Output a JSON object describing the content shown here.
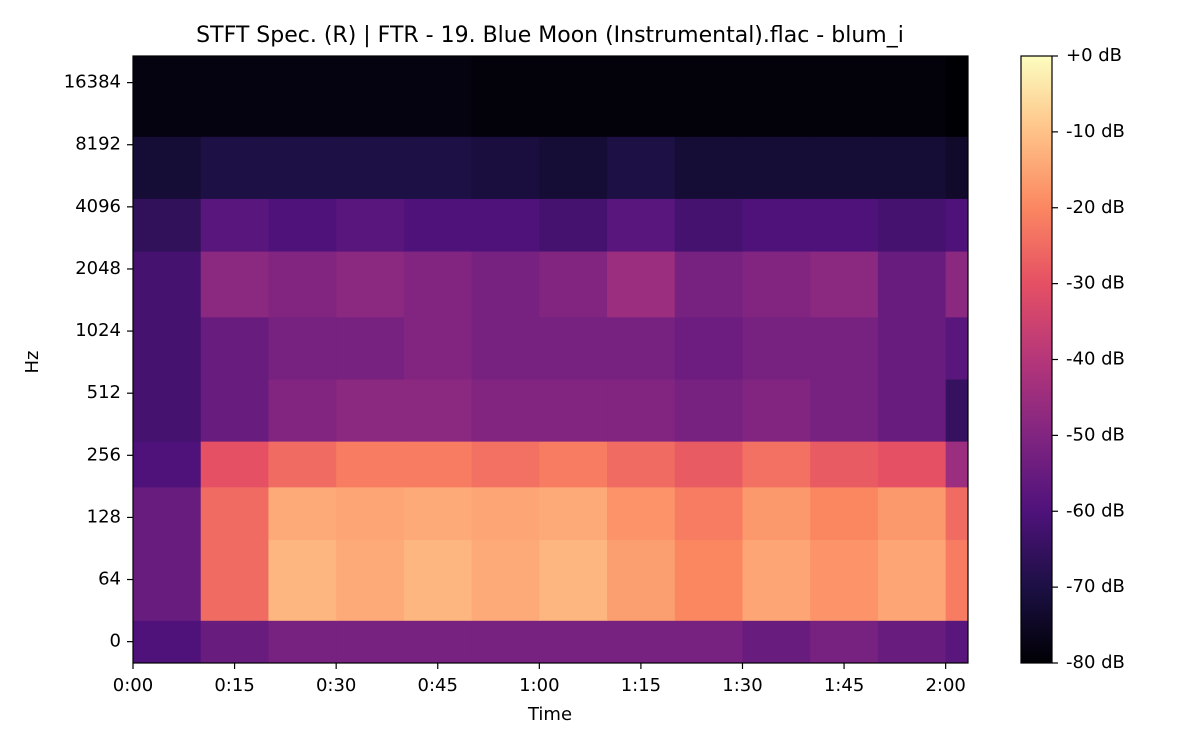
{
  "chart_data": {
    "type": "spectrogram",
    "title": "STFT Spec. (R) | FTR - 19. Blue Moon (Instrumental).flac - blum_i",
    "x_label": "Time",
    "y_label": "Hz",
    "xlim": [
      0,
      123.3
    ],
    "xticks": [
      {
        "value": 0,
        "label": "0:00"
      },
      {
        "value": 15,
        "label": "0:15"
      },
      {
        "value": 30,
        "label": "0:30"
      },
      {
        "value": 45,
        "label": "0:45"
      },
      {
        "value": 60,
        "label": "1:00"
      },
      {
        "value": 75,
        "label": "1:15"
      },
      {
        "value": 90,
        "label": "1:30"
      },
      {
        "value": 105,
        "label": "1:45"
      },
      {
        "value": 120,
        "label": "2:00"
      }
    ],
    "ylim": [
      -22,
      22050
    ],
    "yscale": "symlog",
    "linthresh": 64,
    "yticks": [
      0,
      64,
      128,
      256,
      512,
      1024,
      2048,
      4096,
      8192,
      16384
    ],
    "clim": [
      -80,
      0
    ],
    "cticks": [
      {
        "value": 0,
        "label": "+0 dB"
      },
      {
        "value": -10,
        "label": "-10 dB"
      },
      {
        "value": -20,
        "label": "-20 dB"
      },
      {
        "value": -30,
        "label": "-30 dB"
      },
      {
        "value": -40,
        "label": "-40 dB"
      },
      {
        "value": -50,
        "label": "-50 dB"
      },
      {
        "value": -60,
        "label": "-60 dB"
      },
      {
        "value": -70,
        "label": "-70 dB"
      },
      {
        "value": -80,
        "label": "-80 dB"
      }
    ],
    "colormap": [
      "#000004",
      "#1c1044",
      "#4f127b",
      "#812581",
      "#b5367a",
      "#e55064",
      "#fb8761",
      "#fec287",
      "#fcfdbf"
    ],
    "time_bins": [
      0,
      10,
      20,
      30,
      40,
      50,
      60,
      70,
      80,
      90,
      100,
      110,
      120,
      123.3
    ],
    "freq_bins": [
      -22,
      22,
      100,
      180,
      300,
      600,
      1200,
      2500,
      4500,
      9000,
      22050
    ],
    "values": [
      [
        -60,
        -55,
        -52,
        -52,
        -52,
        -52,
        -52,
        -52,
        -52,
        -55,
        -52,
        -55,
        -58
      ],
      [
        -55,
        -25,
        -12,
        -14,
        -12,
        -14,
        -12,
        -16,
        -20,
        -15,
        -18,
        -15,
        -22
      ],
      [
        -55,
        -25,
        -14,
        -15,
        -14,
        -15,
        -14,
        -18,
        -22,
        -17,
        -20,
        -17,
        -25
      ],
      [
        -60,
        -30,
        -25,
        -22,
        -22,
        -24,
        -22,
        -25,
        -28,
        -24,
        -28,
        -30,
        -45
      ],
      [
        -62,
        -55,
        -50,
        -48,
        -48,
        -50,
        -50,
        -50,
        -52,
        -50,
        -52,
        -55,
        -65
      ],
      [
        -62,
        -55,
        -52,
        -52,
        -50,
        -52,
        -52,
        -52,
        -54,
        -52,
        -52,
        -55,
        -58
      ],
      [
        -62,
        -48,
        -50,
        -48,
        -50,
        -52,
        -50,
        -45,
        -52,
        -50,
        -48,
        -55,
        -48
      ],
      [
        -66,
        -58,
        -60,
        -58,
        -60,
        -60,
        -62,
        -58,
        -62,
        -60,
        -60,
        -62,
        -60
      ],
      [
        -72,
        -70,
        -70,
        -70,
        -70,
        -71,
        -72,
        -70,
        -72,
        -72,
        -72,
        -72,
        -74
      ],
      [
        -78,
        -78,
        -78,
        -78,
        -78,
        -79,
        -79,
        -79,
        -79,
        -79,
        -79,
        -79,
        -80
      ]
    ]
  }
}
